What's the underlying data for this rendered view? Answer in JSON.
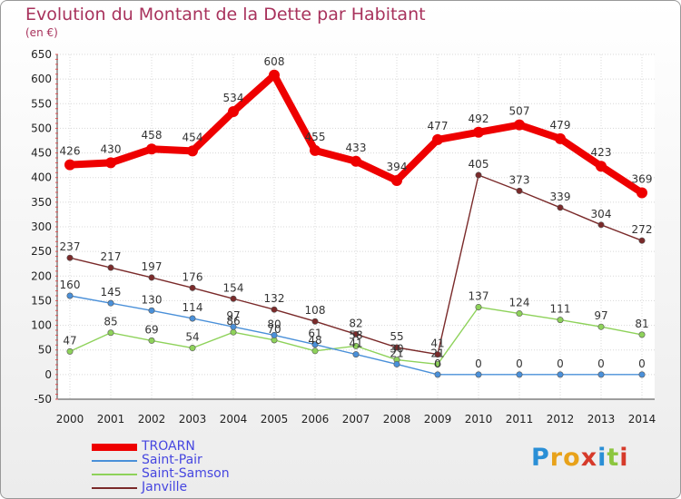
{
  "title": "Evolution du Montant de la Dette par Habitant",
  "subtitle": "(en €)",
  "brand": {
    "letters": [
      "P",
      "r",
      "o",
      "x",
      "i",
      "t",
      "i"
    ],
    "colors": [
      "#2a8fd6",
      "#e8a21a",
      "#e8a21a",
      "#d63a2a",
      "#2a8fd6",
      "#8cc63f",
      "#d63a2a"
    ]
  },
  "chart_data": {
    "type": "line",
    "x": [
      "2000",
      "2001",
      "2002",
      "2003",
      "2004",
      "2005",
      "2006",
      "2007",
      "2008",
      "2009",
      "2010",
      "2011",
      "2012",
      "2013",
      "2014"
    ],
    "ylim": [
      -50,
      650
    ],
    "yticks": [
      "-50",
      "0",
      "50",
      "100",
      "150",
      "200",
      "250",
      "300",
      "350",
      "400",
      "450",
      "500",
      "550",
      "600",
      "650"
    ],
    "grid": true,
    "legend": "bottom-left",
    "series": [
      {
        "name": "TROARN",
        "color": "#ee0000",
        "values": [
          426,
          430,
          458,
          454,
          534,
          608,
          455,
          433,
          394,
          477,
          492,
          507,
          479,
          423,
          369
        ]
      },
      {
        "name": "Saint-Pair",
        "color": "#4a90d9",
        "values": [
          160,
          145,
          130,
          114,
          97,
          80,
          61,
          41,
          21,
          0,
          0,
          0,
          0,
          0,
          0
        ]
      },
      {
        "name": "Saint-Samson",
        "color": "#8ed25a",
        "values": [
          47,
          85,
          69,
          54,
          86,
          70,
          48,
          58,
          30,
          21,
          137,
          124,
          111,
          97,
          81
        ]
      },
      {
        "name": "Janville",
        "color": "#7a2a2a",
        "values": [
          237,
          217,
          197,
          176,
          154,
          132,
          108,
          82,
          55,
          41,
          405,
          373,
          339,
          304,
          272
        ]
      }
    ]
  }
}
